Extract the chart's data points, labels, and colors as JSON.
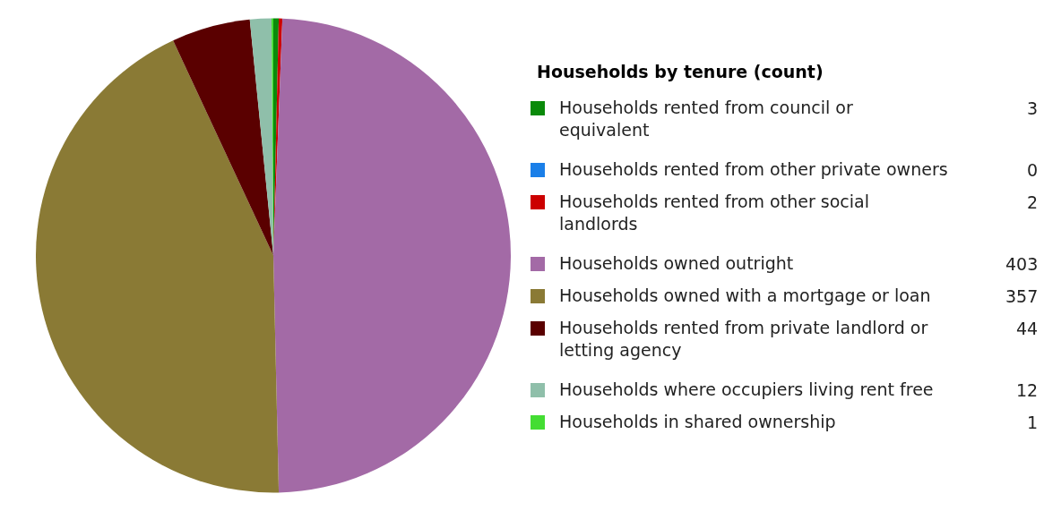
{
  "chart_data": {
    "type": "pie",
    "legend_title": "Households by tenure (count)",
    "categories": [
      "Households rented from council or equivalent",
      "Households rented from other private owners",
      "Households rented from other social landlords",
      "Households owned outright",
      "Households owned with a mortgage or loan",
      "Households rented from private landlord or letting agency",
      "Households where occupiers living rent free",
      "Households in shared ownership"
    ],
    "values": [
      3,
      0,
      2,
      403,
      357,
      44,
      12,
      1
    ],
    "colors": [
      "#0a8a0a",
      "#1a7fe8",
      "#cc0000",
      "#a36aa6",
      "#8a7a35",
      "#5a0000",
      "#8fbfaa",
      "#44dd33"
    ],
    "value_labels": [
      "3",
      "0",
      "2",
      "403",
      "357",
      "44",
      "12",
      "1"
    ],
    "legend": "right"
  }
}
